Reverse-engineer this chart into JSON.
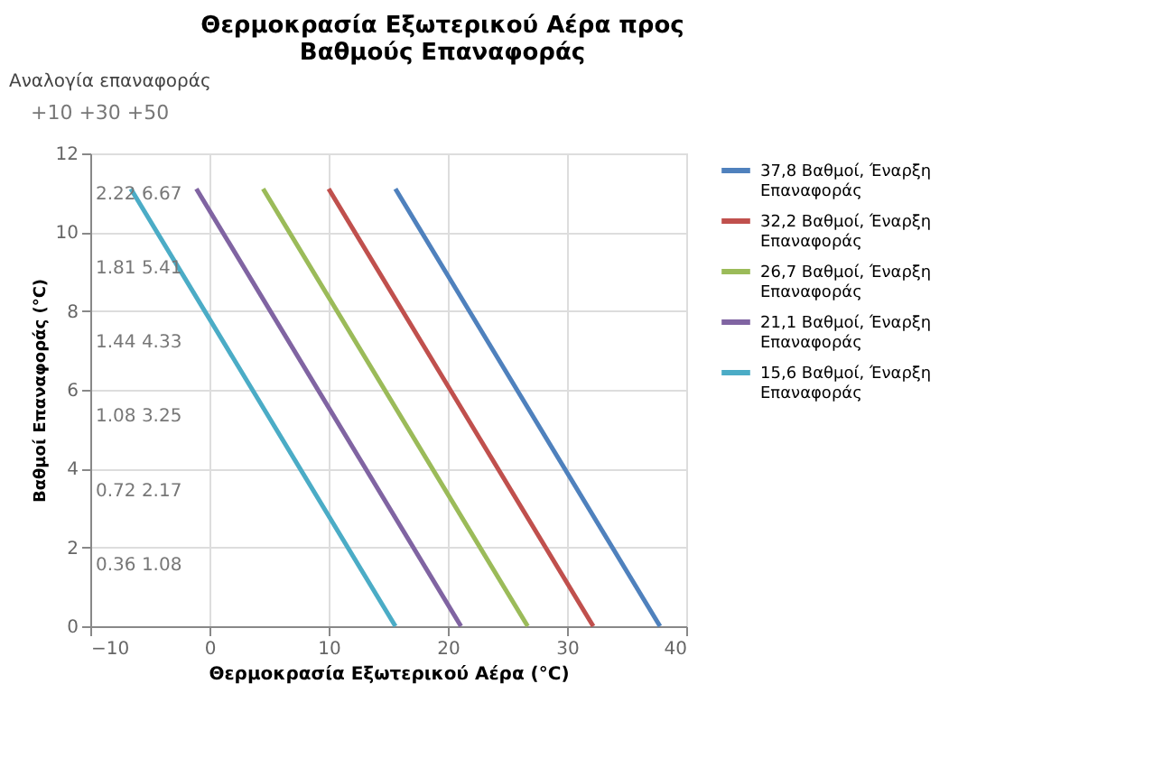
{
  "chart_data": {
    "type": "line",
    "title": [
      "Θερμοκρασία Εξωτερικού Αέρα προς",
      "Βαθμούς Επαναφοράς"
    ],
    "xlabel": "Θερμοκρασία Εξωτερικού Αέρα (°C)",
    "ylabel": "Βαθμοί Επαναφοράς (°C)",
    "xlim": [
      -10,
      40
    ],
    "xticks": [
      -10,
      0,
      10,
      20,
      30,
      40
    ],
    "ylim": [
      0,
      12
    ],
    "yticks": [
      0,
      2,
      4,
      6,
      8,
      10,
      12
    ],
    "grid": true,
    "legend": "right",
    "line_style": "solid",
    "marker": "none",
    "series": [
      {
        "name": "37,8 Βαθμοί, Έναρξη Επαναφοράς",
        "color": "#4f81bd",
        "x": [
          15.6,
          37.8
        ],
        "values": [
          11.1,
          0
        ]
      },
      {
        "name": "32,2 Βαθμοί, Έναρξη Επαναφοράς",
        "color": "#c0504d",
        "x": [
          10.0,
          32.2
        ],
        "values": [
          11.1,
          0
        ]
      },
      {
        "name": "26,7 Βαθμοί, Έναρξη Επαναφοράς",
        "color": "#9bbb59",
        "x": [
          4.5,
          26.7
        ],
        "values": [
          11.1,
          0
        ]
      },
      {
        "name": "21,1 Βαθμοί, Έναρξη Επαναφοράς",
        "color": "#8064a2",
        "x": [
          -1.1,
          21.1
        ],
        "values": [
          11.1,
          0
        ]
      },
      {
        "name": "15,6 Βαθμοί, Έναρξη Επαναφοράς",
        "color": "#4bacc6",
        "x": [
          -6.6,
          15.6
        ],
        "values": [
          11.1,
          0
        ]
      }
    ],
    "annotations": [
      "Αναλογία επαναφοράς",
      "+10  +30  +50",
      "2.22  6.67",
      "1.81  5.41",
      "1.44  4.33",
      "1.08  3.25",
      "0.72  2.17",
      "0.36  1.08"
    ]
  }
}
